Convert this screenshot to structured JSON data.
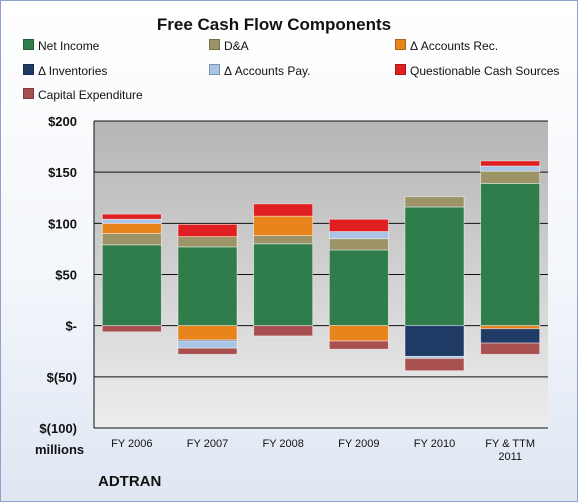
{
  "company": "ADTRAN",
  "units_label": "millions",
  "chart_data": {
    "type": "bar",
    "stacked": true,
    "title": "Free Cash Flow Components",
    "categories": [
      "FY 2006",
      "FY 2007",
      "FY 2008",
      "FY 2009",
      "FY 2010",
      "FY & TTM\n2011"
    ],
    "ylim": [
      -100,
      200
    ],
    "yticks": [
      200,
      150,
      100,
      50,
      0,
      -50,
      -100
    ],
    "ytick_labels": [
      "$200",
      "$150",
      "$100",
      "$50",
      "$-",
      "$(50)",
      "$(100)"
    ],
    "legend_position": "top",
    "grid": true,
    "series": [
      {
        "name": "Net Income",
        "color": "#2e7d4a",
        "values": [
          79,
          77,
          80,
          74,
          116,
          139
        ]
      },
      {
        "name": "D&A",
        "color": "#9c9466",
        "values": [
          11,
          10,
          8,
          11,
          10,
          12
        ]
      },
      {
        "name": "Δ Accounts Rec.",
        "color": "#e8841c",
        "values": [
          10,
          -14,
          19,
          -15,
          0,
          -3
        ]
      },
      {
        "name": "Δ Inventories",
        "color": "#1f3a64",
        "values": [
          0,
          -1,
          0,
          0,
          -30,
          -14
        ]
      },
      {
        "name": "Δ Accounts Pay.",
        "color": "#a9c4e4",
        "values": [
          4,
          -7,
          0,
          7,
          -2,
          5
        ]
      },
      {
        "name": "Questionable Cash Sources",
        "color": "#e02020",
        "values": [
          5,
          12,
          12,
          12,
          0,
          5
        ]
      },
      {
        "name": "Capital Expenditure",
        "color": "#a85050",
        "values": [
          -6,
          -6,
          -10,
          -8,
          -12,
          -11
        ]
      }
    ]
  }
}
